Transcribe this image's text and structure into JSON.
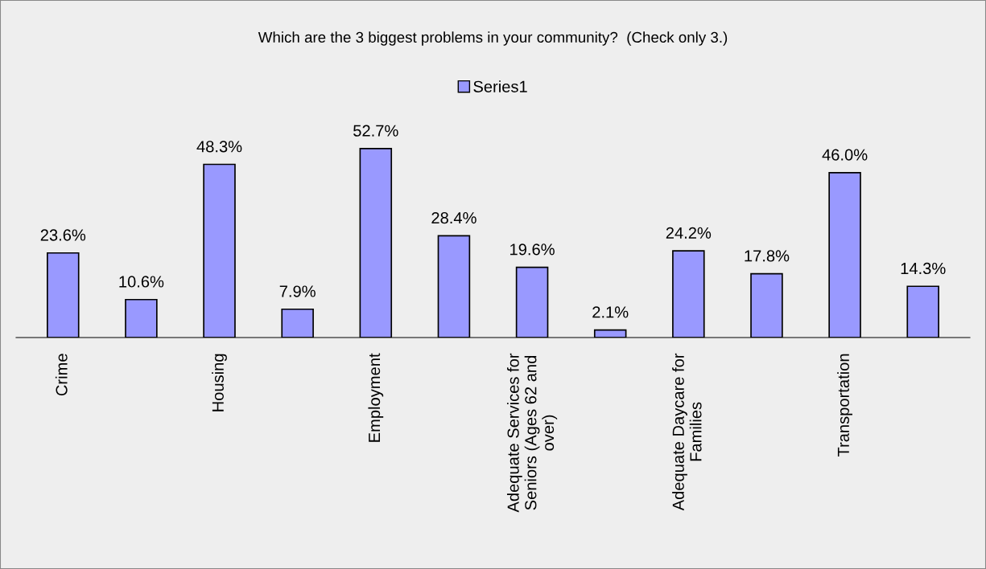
{
  "chart_data": {
    "type": "bar",
    "title": "Which are the 3 biggest problems in your community?  (Check only 3.)",
    "categories": [
      "Crime",
      null,
      "Housing",
      null,
      "Employment",
      null,
      "Adequate Services for Seniors (Ages 62 and over)",
      null,
      "Adequate Daycare for Families",
      null,
      "Transportation",
      null
    ],
    "series": [
      {
        "name": "Series1",
        "color": "#9999ff",
        "values": [
          23.6,
          10.6,
          48.3,
          7.9,
          52.7,
          28.4,
          19.6,
          2.1,
          24.2,
          17.8,
          46.0,
          14.3
        ],
        "value_labels": [
          "23.6%",
          "10.6%",
          "48.3%",
          "7.9%",
          "52.7%",
          "28.4%",
          "19.6%",
          "2.1%",
          "24.2%",
          "17.8%",
          "46.0%",
          "14.3%"
        ]
      }
    ],
    "tick_labels": "x",
    "legend": "top",
    "grid": false
  }
}
